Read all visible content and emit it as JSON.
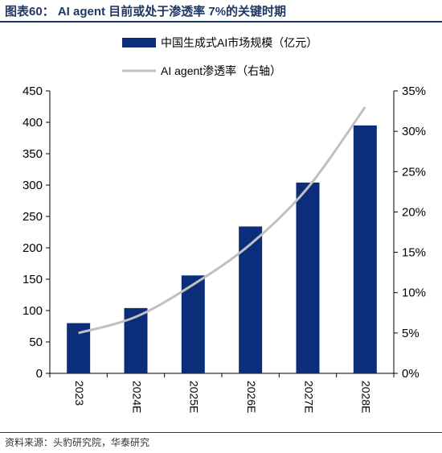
{
  "figure": {
    "title": "图表60： AI agent 目前或处于渗透率 7%的关键时期",
    "source": "资料来源：头豹研究院，华泰研究"
  },
  "colors": {
    "title": "#1f3864",
    "bar": "#0b2d7a",
    "line": "#c0c0c0",
    "axis": "#000000"
  },
  "chart_data": {
    "type": "bar",
    "categories": [
      "2023",
      "2024E",
      "2025E",
      "2026E",
      "2027E",
      "2028E"
    ],
    "series": [
      {
        "name": "中国生成式AI市场规模（亿元）",
        "type": "bar",
        "axis": "left",
        "values": [
          80,
          104,
          156,
          234,
          304,
          395
        ]
      },
      {
        "name": "AI agent渗透率（右轴）",
        "type": "line",
        "axis": "right",
        "values": [
          0.05,
          0.07,
          0.11,
          0.16,
          0.23,
          0.33
        ]
      }
    ],
    "left_axis": {
      "ylim": [
        0,
        450
      ],
      "ticks": [
        0,
        50,
        100,
        150,
        200,
        250,
        300,
        350,
        400,
        450
      ]
    },
    "right_axis": {
      "ylim": [
        0,
        0.35
      ],
      "ticks": [
        0,
        0.05,
        0.1,
        0.15,
        0.2,
        0.25,
        0.3,
        0.35
      ],
      "tick_labels": [
        "0%",
        "5%",
        "10%",
        "15%",
        "20%",
        "25%",
        "30%",
        "35%"
      ]
    },
    "legend_placement": "top-center",
    "grid": false
  }
}
